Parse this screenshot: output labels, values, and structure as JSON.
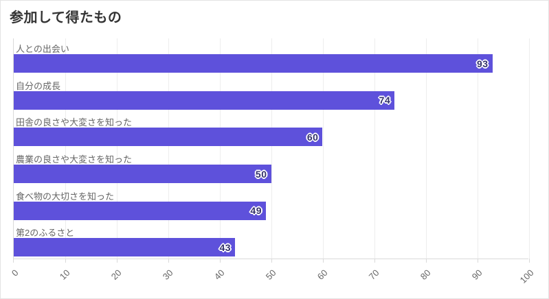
{
  "title": "参加して得たもの",
  "colors": {
    "bar": "#5e51db",
    "value_text": "#32306b",
    "value_outline": "#ffffff",
    "title_text": "#333333",
    "category_text": "#666666",
    "tick_text": "#666666",
    "gridline": "#ededed",
    "axis_line": "#d9d9d9",
    "card_border": "#e3e3e3",
    "background": "#ffffff"
  },
  "chart_data": {
    "type": "bar",
    "orientation": "horizontal",
    "title": "参加して得たもの",
    "categories": [
      "人との出会い",
      "自分の成長",
      "田舎の良さや大変さを知った",
      "農業の良さや大変さを知った",
      "食べ物の大切さを知った",
      "第2のふるさと"
    ],
    "values": [
      93,
      74,
      60,
      50,
      49,
      43
    ],
    "value_labels": [
      "93",
      "74",
      "60",
      "50",
      "49",
      "43"
    ],
    "xlabel": "",
    "ylabel": "",
    "xlim": [
      0,
      100
    ],
    "x_ticks": [
      0,
      10,
      20,
      30,
      40,
      50,
      60,
      70,
      80,
      90,
      100
    ],
    "grid": true,
    "legend": false,
    "value_label_position": "inside-end",
    "tick_label_rotation_deg": -45
  }
}
